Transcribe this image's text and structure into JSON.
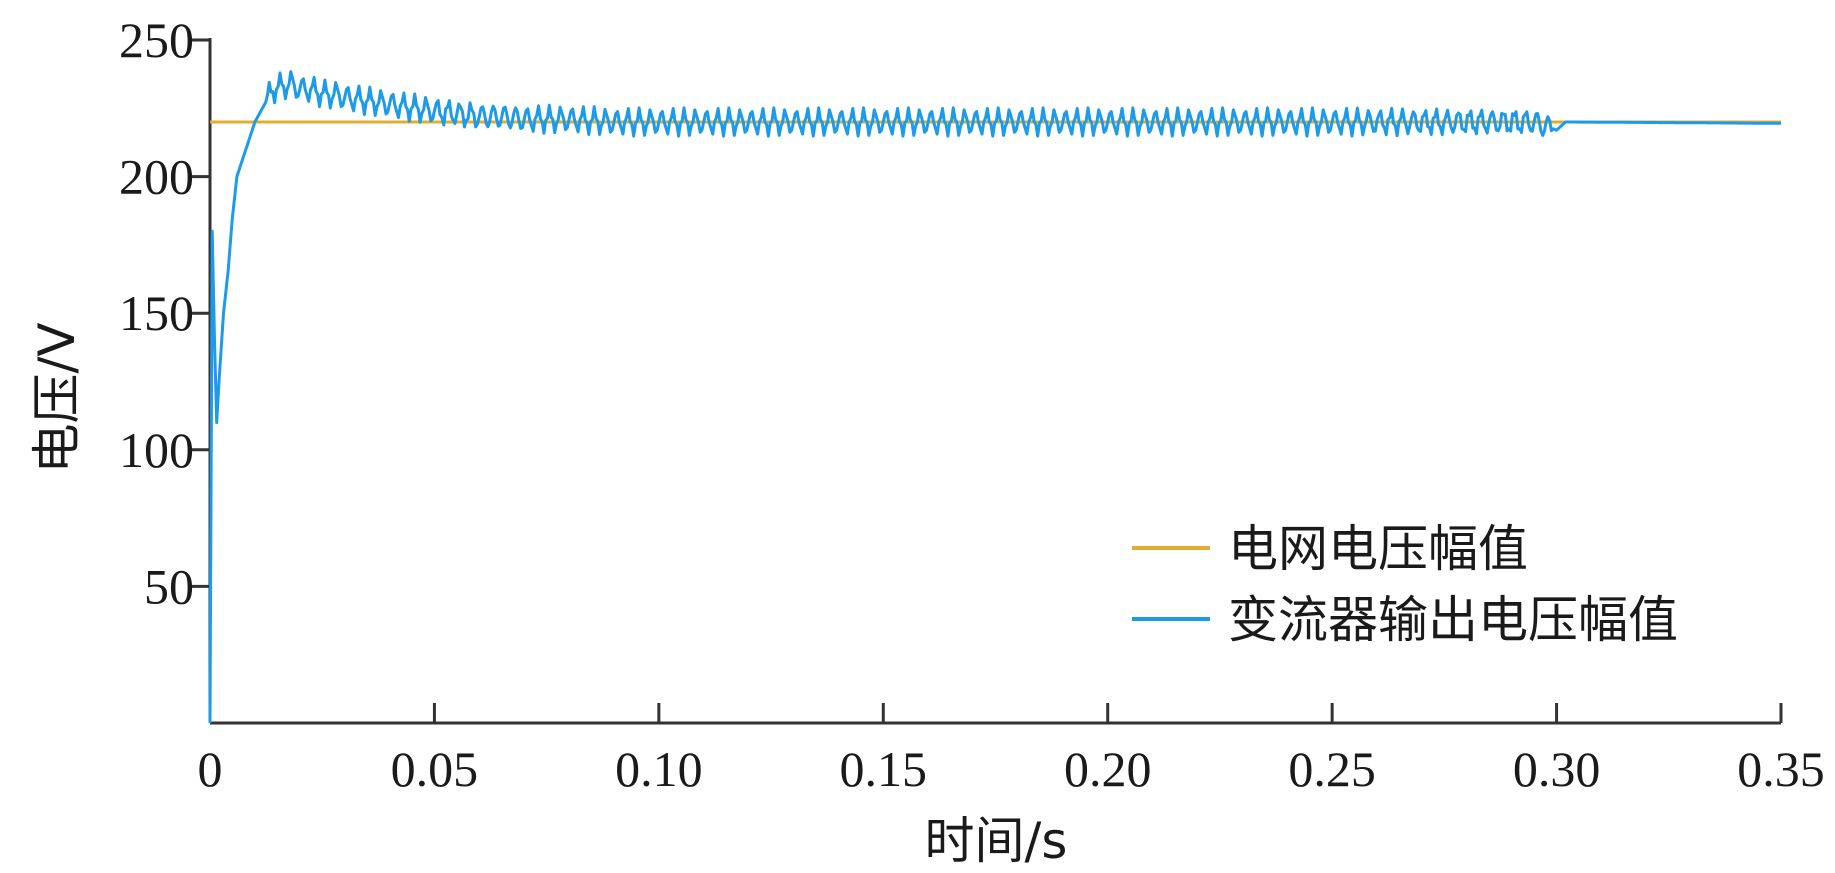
{
  "chart_data": {
    "type": "line",
    "title": "",
    "xlabel": "时间/s",
    "ylabel": "电压/V",
    "xlim": [
      0,
      0.35
    ],
    "ylim": [
      0,
      250
    ],
    "x_ticks": [
      0,
      0.05,
      0.1,
      0.15,
      0.2,
      0.25,
      0.3,
      0.35
    ],
    "x_tick_labels": [
      "0",
      "0.05",
      "0.10",
      "0.15",
      "0.20",
      "0.25",
      "0.30",
      "0.35"
    ],
    "y_ticks": [
      50,
      100,
      150,
      200,
      250
    ],
    "y_tick_labels": [
      "50",
      "100",
      "150",
      "200",
      "250"
    ],
    "grid": false,
    "legend_position": "bottom-right",
    "series": [
      {
        "name": "电网电压幅值",
        "color": "#e3ac2c",
        "x": [
          0,
          0.35
        ],
        "y": [
          220,
          220
        ]
      },
      {
        "name": "变流器输出电压幅值",
        "color": "#1e9be8",
        "x": [
          0,
          0.0005,
          0.001,
          0.0015,
          0.002,
          0.003,
          0.004,
          0.005,
          0.006,
          0.007,
          0.008,
          0.009,
          0.01,
          0.012,
          0.014,
          0.016,
          0.018,
          0.02,
          0.022,
          0.024,
          0.026,
          0.028,
          0.03,
          0.034,
          0.038,
          0.042,
          0.046,
          0.05,
          0.055,
          0.06,
          0.065,
          0.07,
          0.08,
          0.09,
          0.1,
          0.15,
          0.2,
          0.25,
          0.295,
          0.3,
          0.302,
          0.35
        ],
        "y": [
          0,
          180,
          140,
          110,
          125,
          150,
          165,
          185,
          200,
          205,
          210,
          215,
          220,
          226,
          232,
          233,
          234,
          232,
          232,
          231,
          230,
          230,
          229,
          228,
          227,
          226,
          225,
          224,
          223,
          222,
          222,
          221,
          221,
          220,
          220,
          220,
          220,
          220,
          220,
          217,
          220,
          219.5
        ]
      }
    ]
  }
}
